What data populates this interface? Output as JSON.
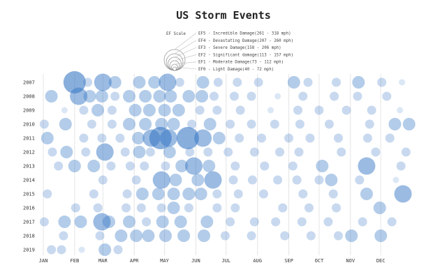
{
  "chart_data": {
    "type": "scatter",
    "title": "US Storm Events",
    "x_ticks": [
      "JAN",
      "FEB",
      "MAR",
      "APR",
      "MAY",
      "JUN",
      "JUL",
      "AUG",
      "SEP",
      "OCT",
      "NOV",
      "DEC"
    ],
    "y_ticks": [
      "2007",
      "2008",
      "2009",
      "2010",
      "2011",
      "2012",
      "2013",
      "2014",
      "2015",
      "2016",
      "2017",
      "2018",
      "2019"
    ],
    "legend": {
      "title": "EF Scale",
      "entries": [
        {
          "scale": "EF5",
          "label": "EF5 - Incredible Damage(261 - 318 mph)"
        },
        {
          "scale": "EF4",
          "label": "EF4 - Devastating Damage(207 - 260 mph)"
        },
        {
          "scale": "EF3",
          "label": "EF3 - Severe Damage(158 - 206 mph)"
        },
        {
          "scale": "EF2",
          "label": "EF2 - Significant damage(113 - 157 mph)"
        },
        {
          "scale": "EF1",
          "label": "EF1 - Moderate Damage(73 - 112 mph)"
        },
        {
          "scale": "EF0",
          "label": "EF0 - Light Damage(40 - 72 mph)"
        }
      ]
    },
    "color": "#3878c5",
    "grid": true,
    "points": [
      {
        "year": "2007",
        "d": "2007-02-01",
        "ef": 5
      },
      {
        "year": "2007",
        "d": "2007-02-14",
        "ef": 2
      },
      {
        "year": "2007",
        "d": "2007-03-01",
        "ef": 4
      },
      {
        "year": "2007",
        "d": "2007-03-13",
        "ef": 3
      },
      {
        "year": "2007",
        "d": "2007-04-06",
        "ef": 3
      },
      {
        "year": "2007",
        "d": "2007-04-21",
        "ef": 3
      },
      {
        "year": "2007",
        "d": "2007-05-04",
        "ef": 4
      },
      {
        "year": "2007",
        "d": "2007-05-16",
        "ef": 2
      },
      {
        "year": "2007",
        "d": "2007-06-08",
        "ef": 3
      },
      {
        "year": "2007",
        "d": "2007-06-23",
        "ef": 2
      },
      {
        "year": "2007",
        "d": "2007-07-12",
        "ef": 2
      },
      {
        "year": "2007",
        "d": "2007-08-02",
        "ef": 2
      },
      {
        "year": "2007",
        "d": "2007-09-06",
        "ef": 3
      },
      {
        "year": "2007",
        "d": "2007-09-20",
        "ef": 2
      },
      {
        "year": "2007",
        "d": "2007-10-18",
        "ef": 2
      },
      {
        "year": "2007",
        "d": "2007-11-09",
        "ef": 3
      },
      {
        "year": "2007",
        "d": "2007-12-02",
        "ef": 2
      },
      {
        "year": "2007",
        "d": "2007-12-22",
        "ef": 1
      },
      {
        "year": "2008",
        "d": "2008-01-09",
        "ef": 3
      },
      {
        "year": "2008",
        "d": "2008-02-05",
        "ef": 4
      },
      {
        "year": "2008",
        "d": "2008-02-16",
        "ef": 3
      },
      {
        "year": "2008",
        "d": "2008-02-28",
        "ef": 3
      },
      {
        "year": "2008",
        "d": "2008-03-12",
        "ef": 2
      },
      {
        "year": "2008",
        "d": "2008-03-26",
        "ef": 3
      },
      {
        "year": "2008",
        "d": "2008-04-11",
        "ef": 3
      },
      {
        "year": "2008",
        "d": "2008-04-25",
        "ef": 3
      },
      {
        "year": "2008",
        "d": "2008-05-06",
        "ef": 3
      },
      {
        "year": "2008",
        "d": "2008-05-24",
        "ef": 3
      },
      {
        "year": "2008",
        "d": "2008-06-06",
        "ef": 3
      },
      {
        "year": "2008",
        "d": "2008-06-18",
        "ef": 2
      },
      {
        "year": "2008",
        "d": "2008-07-08",
        "ef": 2
      },
      {
        "year": "2008",
        "d": "2008-07-25",
        "ef": 2
      },
      {
        "year": "2008",
        "d": "2008-08-20",
        "ef": 1
      },
      {
        "year": "2008",
        "d": "2008-09-14",
        "ef": 2
      },
      {
        "year": "2008",
        "d": "2008-10-15",
        "ef": 2
      },
      {
        "year": "2008",
        "d": "2008-11-07",
        "ef": 2
      },
      {
        "year": "2008",
        "d": "2008-12-06",
        "ef": 2
      },
      {
        "year": "2009",
        "d": "2009-01-22",
        "ef": 1
      },
      {
        "year": "2009",
        "d": "2009-02-10",
        "ef": 2
      },
      {
        "year": "2009",
        "d": "2009-02-24",
        "ef": 3
      },
      {
        "year": "2009",
        "d": "2009-03-10",
        "ef": 2
      },
      {
        "year": "2009",
        "d": "2009-04-02",
        "ef": 3
      },
      {
        "year": "2009",
        "d": "2009-04-16",
        "ef": 3
      },
      {
        "year": "2009",
        "d": "2009-05-01",
        "ef": 3
      },
      {
        "year": "2009",
        "d": "2009-05-15",
        "ef": 3
      },
      {
        "year": "2009",
        "d": "2009-06-05",
        "ef": 2
      },
      {
        "year": "2009",
        "d": "2009-06-22",
        "ef": 2
      },
      {
        "year": "2009",
        "d": "2009-07-15",
        "ef": 2
      },
      {
        "year": "2009",
        "d": "2009-08-14",
        "ef": 1
      },
      {
        "year": "2009",
        "d": "2009-09-10",
        "ef": 2
      },
      {
        "year": "2009",
        "d": "2009-10-01",
        "ef": 2
      },
      {
        "year": "2009",
        "d": "2009-10-28",
        "ef": 2
      },
      {
        "year": "2009",
        "d": "2009-11-22",
        "ef": 2
      },
      {
        "year": "2009",
        "d": "2009-12-20",
        "ef": 1
      },
      {
        "year": "2010",
        "d": "2010-01-02",
        "ef": 2
      },
      {
        "year": "2010",
        "d": "2010-01-23",
        "ef": 3
      },
      {
        "year": "2010",
        "d": "2010-02-18",
        "ef": 2
      },
      {
        "year": "2010",
        "d": "2010-03-10",
        "ef": 2
      },
      {
        "year": "2010",
        "d": "2010-03-27",
        "ef": 3
      },
      {
        "year": "2010",
        "d": "2010-04-12",
        "ef": 3
      },
      {
        "year": "2010",
        "d": "2010-04-28",
        "ef": 3
      },
      {
        "year": "2010",
        "d": "2010-05-10",
        "ef": 3
      },
      {
        "year": "2010",
        "d": "2010-05-28",
        "ef": 2
      },
      {
        "year": "2010",
        "d": "2010-06-15",
        "ef": 3
      },
      {
        "year": "2010",
        "d": "2010-07-05",
        "ef": 2
      },
      {
        "year": "2010",
        "d": "2010-07-26",
        "ef": 2
      },
      {
        "year": "2010",
        "d": "2010-08-18",
        "ef": 2
      },
      {
        "year": "2010",
        "d": "2010-09-12",
        "ef": 2
      },
      {
        "year": "2010",
        "d": "2010-10-11",
        "ef": 2
      },
      {
        "year": "2010",
        "d": "2010-11-20",
        "ef": 2
      },
      {
        "year": "2010",
        "d": "2010-12-15",
        "ef": 3
      },
      {
        "year": "2010",
        "d": "2010-12-29",
        "ef": 3
      },
      {
        "year": "2011",
        "d": "2011-01-05",
        "ef": 3
      },
      {
        "year": "2011",
        "d": "2011-02-10",
        "ef": 2
      },
      {
        "year": "2011",
        "d": "2011-02-28",
        "ef": 2
      },
      {
        "year": "2011",
        "d": "2011-03-18",
        "ef": 2
      },
      {
        "year": "2011",
        "d": "2011-04-05",
        "ef": 3
      },
      {
        "year": "2011",
        "d": "2011-04-18",
        "ef": 4
      },
      {
        "year": "2011",
        "d": "2011-04-27",
        "ef": 5
      },
      {
        "year": "2011",
        "d": "2011-05-05",
        "ef": 4
      },
      {
        "year": "2011",
        "d": "2011-05-24",
        "ef": 5
      },
      {
        "year": "2011",
        "d": "2011-06-08",
        "ef": 4
      },
      {
        "year": "2011",
        "d": "2011-06-24",
        "ef": 3
      },
      {
        "year": "2011",
        "d": "2011-07-14",
        "ef": 2
      },
      {
        "year": "2011",
        "d": "2011-08-05",
        "ef": 2
      },
      {
        "year": "2011",
        "d": "2011-09-01",
        "ef": 2
      },
      {
        "year": "2011",
        "d": "2011-09-22",
        "ef": 2
      },
      {
        "year": "2011",
        "d": "2011-10-20",
        "ef": 2
      },
      {
        "year": "2011",
        "d": "2011-11-18",
        "ef": 2
      },
      {
        "year": "2011",
        "d": "2011-12-10",
        "ef": 2
      },
      {
        "year": "2012",
        "d": "2012-01-10",
        "ef": 2
      },
      {
        "year": "2012",
        "d": "2012-01-24",
        "ef": 3
      },
      {
        "year": "2012",
        "d": "2012-02-12",
        "ef": 2
      },
      {
        "year": "2012",
        "d": "2012-03-02",
        "ef": 4
      },
      {
        "year": "2012",
        "d": "2012-03-22",
        "ef": 2
      },
      {
        "year": "2012",
        "d": "2012-04-05",
        "ef": 3
      },
      {
        "year": "2012",
        "d": "2012-04-16",
        "ef": 2
      },
      {
        "year": "2012",
        "d": "2012-05-05",
        "ef": 3
      },
      {
        "year": "2012",
        "d": "2012-05-25",
        "ef": 2
      },
      {
        "year": "2012",
        "d": "2012-06-12",
        "ef": 2
      },
      {
        "year": "2012",
        "d": "2012-07-02",
        "ef": 2
      },
      {
        "year": "2012",
        "d": "2012-07-28",
        "ef": 2
      },
      {
        "year": "2012",
        "d": "2012-08-22",
        "ef": 2
      },
      {
        "year": "2012",
        "d": "2012-09-10",
        "ef": 2
      },
      {
        "year": "2012",
        "d": "2012-10-22",
        "ef": 2
      },
      {
        "year": "2012",
        "d": "2012-11-25",
        "ef": 2
      },
      {
        "year": "2012",
        "d": "2012-12-25",
        "ef": 2
      },
      {
        "year": "2013",
        "d": "2013-01-16",
        "ef": 2
      },
      {
        "year": "2013",
        "d": "2013-02-01",
        "ef": 3
      },
      {
        "year": "2013",
        "d": "2013-02-20",
        "ef": 3
      },
      {
        "year": "2013",
        "d": "2013-03-09",
        "ef": 2
      },
      {
        "year": "2013",
        "d": "2013-03-28",
        "ef": 2
      },
      {
        "year": "2013",
        "d": "2013-04-11",
        "ef": 2
      },
      {
        "year": "2013",
        "d": "2013-05-02",
        "ef": 2
      },
      {
        "year": "2013",
        "d": "2013-05-18",
        "ef": 3
      },
      {
        "year": "2013",
        "d": "2013-05-30",
        "ef": 4
      },
      {
        "year": "2013",
        "d": "2013-06-14",
        "ef": 3
      },
      {
        "year": "2013",
        "d": "2013-07-10",
        "ef": 2
      },
      {
        "year": "2013",
        "d": "2013-08-08",
        "ef": 2
      },
      {
        "year": "2013",
        "d": "2013-09-05",
        "ef": 2
      },
      {
        "year": "2013",
        "d": "2013-10-04",
        "ef": 3
      },
      {
        "year": "2013",
        "d": "2013-11-17",
        "ef": 4
      },
      {
        "year": "2013",
        "d": "2013-12-21",
        "ef": 2
      },
      {
        "year": "2014",
        "d": "2014-03-01",
        "ef": 2
      },
      {
        "year": "2014",
        "d": "2014-04-03",
        "ef": 2
      },
      {
        "year": "2014",
        "d": "2014-04-28",
        "ef": 4
      },
      {
        "year": "2014",
        "d": "2014-05-12",
        "ef": 3
      },
      {
        "year": "2014",
        "d": "2014-06-03",
        "ef": 3
      },
      {
        "year": "2014",
        "d": "2014-06-18",
        "ef": 4
      },
      {
        "year": "2014",
        "d": "2014-07-08",
        "ef": 2
      },
      {
        "year": "2014",
        "d": "2014-07-27",
        "ef": 2
      },
      {
        "year": "2014",
        "d": "2014-08-21",
        "ef": 2
      },
      {
        "year": "2014",
        "d": "2014-09-09",
        "ef": 2
      },
      {
        "year": "2014",
        "d": "2014-10-01",
        "ef": 2
      },
      {
        "year": "2014",
        "d": "2014-10-13",
        "ef": 3
      },
      {
        "year": "2014",
        "d": "2014-11-10",
        "ef": 2
      },
      {
        "year": "2014",
        "d": "2014-12-16",
        "ef": 1
      },
      {
        "year": "2015",
        "d": "2015-01-05",
        "ef": 2
      },
      {
        "year": "2015",
        "d": "2015-02-20",
        "ef": 2
      },
      {
        "year": "2015",
        "d": "2015-03-25",
        "ef": 2
      },
      {
        "year": "2015",
        "d": "2015-04-09",
        "ef": 3
      },
      {
        "year": "2015",
        "d": "2015-04-25",
        "ef": 3
      },
      {
        "year": "2015",
        "d": "2015-05-10",
        "ef": 3
      },
      {
        "year": "2015",
        "d": "2015-05-25",
        "ef": 3
      },
      {
        "year": "2015",
        "d": "2015-06-06",
        "ef": 3
      },
      {
        "year": "2015",
        "d": "2015-06-22",
        "ef": 2
      },
      {
        "year": "2015",
        "d": "2015-07-13",
        "ef": 2
      },
      {
        "year": "2015",
        "d": "2015-08-07",
        "ef": 2
      },
      {
        "year": "2015",
        "d": "2015-09-15",
        "ef": 2
      },
      {
        "year": "2015",
        "d": "2015-10-15",
        "ef": 2
      },
      {
        "year": "2015",
        "d": "2015-11-17",
        "ef": 3
      },
      {
        "year": "2015",
        "d": "2015-12-23",
        "ef": 4
      },
      {
        "year": "2016",
        "d": "2016-02-02",
        "ef": 2
      },
      {
        "year": "2016",
        "d": "2016-02-24",
        "ef": 2
      },
      {
        "year": "2016",
        "d": "2016-03-23",
        "ef": 2
      },
      {
        "year": "2016",
        "d": "2016-04-07",
        "ef": 2
      },
      {
        "year": "2016",
        "d": "2016-04-27",
        "ef": 2
      },
      {
        "year": "2016",
        "d": "2016-05-09",
        "ef": 3
      },
      {
        "year": "2016",
        "d": "2016-05-24",
        "ef": 2
      },
      {
        "year": "2016",
        "d": "2016-06-21",
        "ef": 2
      },
      {
        "year": "2016",
        "d": "2016-07-09",
        "ef": 2
      },
      {
        "year": "2016",
        "d": "2016-08-25",
        "ef": 2
      },
      {
        "year": "2016",
        "d": "2016-09-20",
        "ef": 2
      },
      {
        "year": "2016",
        "d": "2016-10-17",
        "ef": 2
      },
      {
        "year": "2016",
        "d": "2016-11-29",
        "ef": 3
      },
      {
        "year": "2017",
        "d": "2017-01-02",
        "ef": 2
      },
      {
        "year": "2017",
        "d": "2017-01-22",
        "ef": 3
      },
      {
        "year": "2017",
        "d": "2017-02-07",
        "ef": 3
      },
      {
        "year": "2017",
        "d": "2017-02-28",
        "ef": 4
      },
      {
        "year": "2017",
        "d": "2017-03-07",
        "ef": 3
      },
      {
        "year": "2017",
        "d": "2017-03-27",
        "ef": 3
      },
      {
        "year": "2017",
        "d": "2017-04-13",
        "ef": 2
      },
      {
        "year": "2017",
        "d": "2017-04-29",
        "ef": 3
      },
      {
        "year": "2017",
        "d": "2017-05-17",
        "ef": 3
      },
      {
        "year": "2017",
        "d": "2017-06-12",
        "ef": 3
      },
      {
        "year": "2017",
        "d": "2017-07-05",
        "ef": 2
      },
      {
        "year": "2017",
        "d": "2017-07-29",
        "ef": 2
      },
      {
        "year": "2017",
        "d": "2017-08-19",
        "ef": 2
      },
      {
        "year": "2017",
        "d": "2017-09-14",
        "ef": 2
      },
      {
        "year": "2017",
        "d": "2017-10-10",
        "ef": 2
      },
      {
        "year": "2017",
        "d": "2017-11-13",
        "ef": 2
      },
      {
        "year": "2017",
        "d": "2017-12-12",
        "ef": 2
      },
      {
        "year": "2018",
        "d": "2018-01-21",
        "ef": 2
      },
      {
        "year": "2018",
        "d": "2018-02-26",
        "ef": 2
      },
      {
        "year": "2018",
        "d": "2018-03-19",
        "ef": 3
      },
      {
        "year": "2018",
        "d": "2018-04-03",
        "ef": 3
      },
      {
        "year": "2018",
        "d": "2018-04-15",
        "ef": 3
      },
      {
        "year": "2018",
        "d": "2018-05-02",
        "ef": 3
      },
      {
        "year": "2018",
        "d": "2018-05-20",
        "ef": 3
      },
      {
        "year": "2018",
        "d": "2018-06-09",
        "ef": 3
      },
      {
        "year": "2018",
        "d": "2018-06-30",
        "ef": 2
      },
      {
        "year": "2018",
        "d": "2018-07-26",
        "ef": 2
      },
      {
        "year": "2018",
        "d": "2018-08-28",
        "ef": 2
      },
      {
        "year": "2018",
        "d": "2018-09-23",
        "ef": 2
      },
      {
        "year": "2018",
        "d": "2018-10-20",
        "ef": 2
      },
      {
        "year": "2018",
        "d": "2018-11-02",
        "ef": 3
      },
      {
        "year": "2018",
        "d": "2018-12-01",
        "ef": 3
      },
      {
        "year": "2019",
        "d": "2019-01-09",
        "ef": 2
      },
      {
        "year": "2019",
        "d": "2019-01-19",
        "ef": 2
      },
      {
        "year": "2019",
        "d": "2019-02-08",
        "ef": 1
      },
      {
        "year": "2019",
        "d": "2019-03-03",
        "ef": 3
      },
      {
        "year": "2019",
        "d": "2019-03-16",
        "ef": 2
      }
    ]
  }
}
